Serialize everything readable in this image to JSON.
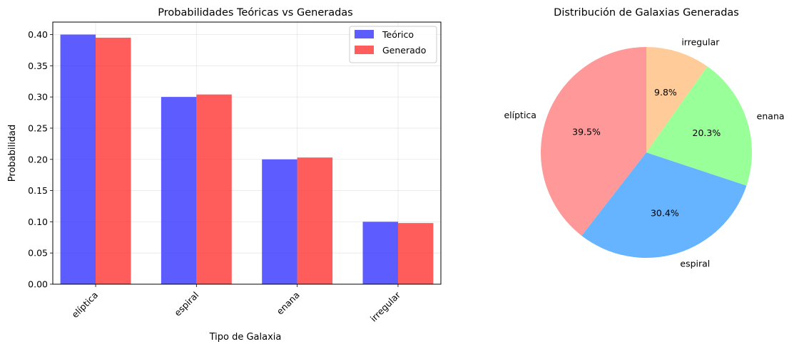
{
  "chart_data": [
    {
      "type": "bar",
      "title": "Probabilidades Teóricas vs Generadas",
      "xlabel": "Tipo de Galaxia",
      "ylabel": "Probabilidad",
      "categories": [
        "elíptica",
        "espiral",
        "enana",
        "irregular"
      ],
      "series": [
        {
          "name": "Teórico",
          "values": [
            0.4,
            0.3,
            0.2,
            0.1
          ],
          "color": "#3333ff"
        },
        {
          "name": "Generado",
          "values": [
            0.395,
            0.304,
            0.203,
            0.098
          ],
          "color": "#ff3333"
        }
      ],
      "ylim": [
        0,
        0.42
      ],
      "yticks": [
        "0.00",
        "0.05",
        "0.10",
        "0.15",
        "0.20",
        "0.25",
        "0.30",
        "0.35",
        "0.40"
      ],
      "grid": true,
      "legend_position": "top-right"
    },
    {
      "type": "pie",
      "title": "Distribución de Galaxias Generadas",
      "labels": [
        "elíptica",
        "espiral",
        "enana",
        "irregular"
      ],
      "values": [
        39.5,
        30.4,
        20.3,
        9.8
      ],
      "pct_labels": [
        "39.5%",
        "30.4%",
        "20.3%",
        "9.8%"
      ],
      "colors": [
        "#ff9999",
        "#66b3ff",
        "#99ff99",
        "#ffcc99"
      ],
      "start_angle": 90
    }
  ]
}
